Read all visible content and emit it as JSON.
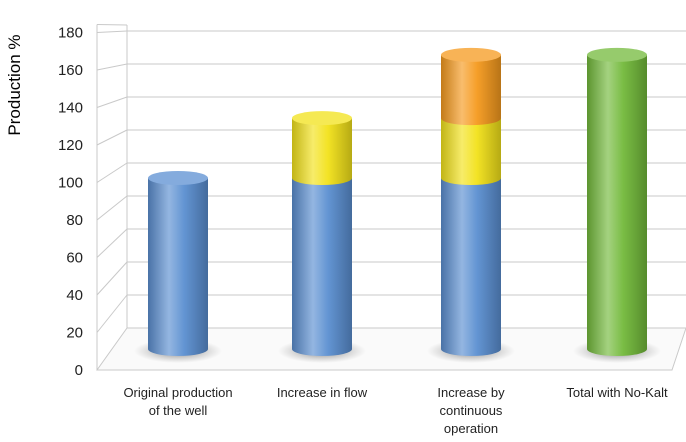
{
  "colors": {
    "original": "#5b8fd1",
    "flow": "#f2e21a",
    "continuous": "#f59a1e",
    "total": "#73ba3b",
    "grid": "#c9c9c9"
  },
  "chart_data": {
    "type": "bar",
    "stacked": true,
    "three_d": true,
    "ylabel": "Production %",
    "xlabel": "",
    "title": "",
    "ylim": [
      0,
      180
    ],
    "yticks": [
      0,
      20,
      40,
      60,
      80,
      100,
      120,
      140,
      160,
      180
    ],
    "grid": true,
    "categories": [
      [
        "Original production",
        "of the well"
      ],
      [
        "Increase in flow"
      ],
      [
        "Increase by",
        "continuous",
        "operation"
      ],
      [
        "Total with No-Kalt"
      ]
    ],
    "series": [
      {
        "color_key": "original",
        "values": [
          100,
          100,
          100,
          0
        ]
      },
      {
        "color_key": "flow",
        "values": [
          0,
          35,
          35,
          0
        ]
      },
      {
        "color_key": "continuous",
        "values": [
          0,
          0,
          37,
          0
        ]
      },
      {
        "color_key": "total",
        "values": [
          0,
          0,
          0,
          172
        ]
      }
    ]
  }
}
